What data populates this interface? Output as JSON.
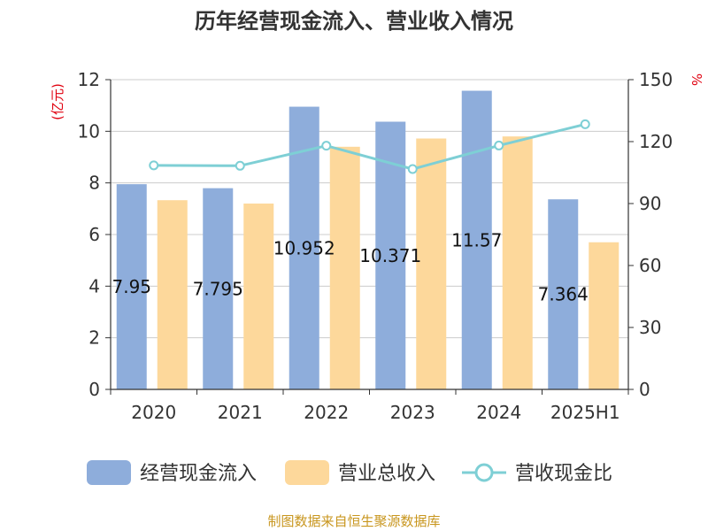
{
  "chart_data": {
    "type": "bar",
    "title": "历年经营现金流入、营业收入情况",
    "categories": [
      "2020",
      "2021",
      "2022",
      "2023",
      "2024",
      "2025H1"
    ],
    "series": [
      {
        "name": "经营现金流入",
        "kind": "bar",
        "axis": "left",
        "color": "#8eaddb",
        "values": [
          7.95,
          7.795,
          10.952,
          10.371,
          11.57,
          7.364
        ],
        "labels": [
          "7.95",
          "7.795",
          "10.952",
          "10.371",
          "11.57",
          "7.364"
        ]
      },
      {
        "name": "营业总收入",
        "kind": "bar",
        "axis": "left",
        "color": "#fdd89b",
        "values": [
          7.33,
          7.2,
          9.4,
          9.72,
          9.8,
          5.7
        ]
      },
      {
        "name": "营收现金比",
        "kind": "line",
        "axis": "right",
        "color": "#7ecfd5",
        "values": [
          108.5,
          108.3,
          118.0,
          106.7,
          118.1,
          128.4
        ]
      }
    ],
    "y_left": {
      "unit": "(亿元)",
      "ylim": [
        0,
        12
      ],
      "ticks": [
        "0",
        "2",
        "4",
        "6",
        "8",
        "10",
        "12"
      ]
    },
    "y_right": {
      "unit": "%",
      "ylim": [
        0,
        150
      ],
      "ticks": [
        "0",
        "30",
        "60",
        "90",
        "120",
        "150"
      ]
    },
    "grid": true,
    "legend_position": "bottom"
  },
  "footer": {
    "source": "制图数据来自恒生聚源数据库"
  }
}
